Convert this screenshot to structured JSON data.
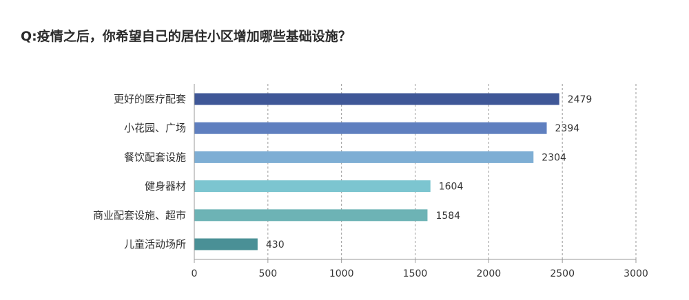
{
  "title": "Q:疫情之后，你希望自己的居住小区增加哪些基础设施？",
  "chart_data": {
    "type": "bar",
    "orientation": "horizontal",
    "title": "Q:疫情之后，你希望自己的居住小区增加哪些基础设施？",
    "categories": [
      "更好的医疗配套",
      "小花园、广场",
      "餐饮配套设施",
      "健身器材",
      "商业配套设施、超市",
      "儿童活动场所"
    ],
    "values": [
      2479,
      2394,
      2304,
      1604,
      1584,
      430
    ],
    "colors": [
      "#3f5797",
      "#5f7fbf",
      "#7eaed4",
      "#7cc5d0",
      "#6db3b5",
      "#4a9096"
    ],
    "xlim": [
      0,
      3000
    ],
    "xticks": [
      0,
      500,
      1000,
      1500,
      2000,
      2500,
      3000
    ],
    "xtick_labels": [
      "0",
      "500",
      "1000",
      "1500",
      "2000",
      "2500",
      "3000"
    ],
    "grid": "vertical-dashed",
    "legend": "none",
    "data_labels": true
  }
}
